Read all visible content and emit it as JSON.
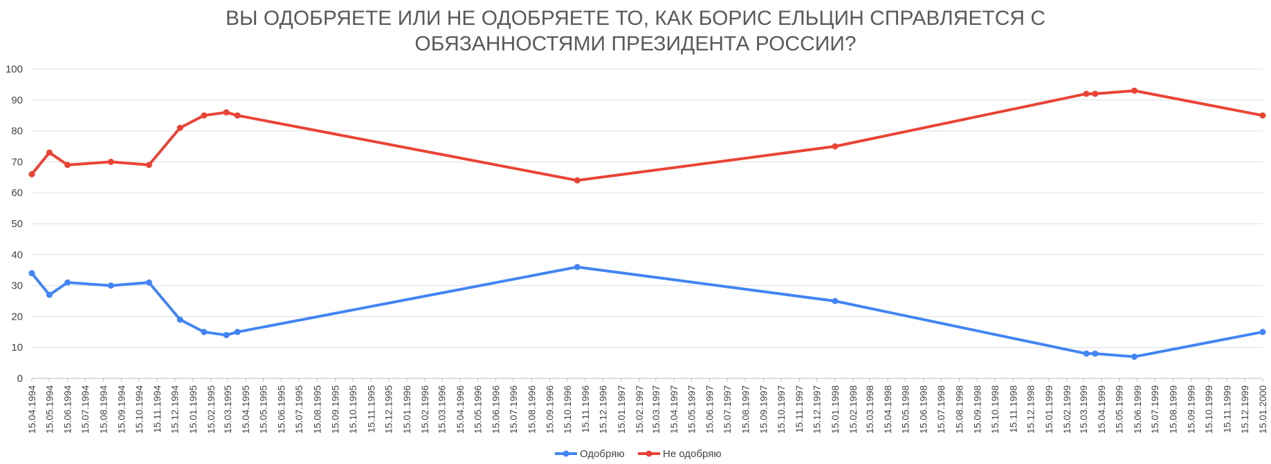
{
  "chart_data": {
    "type": "line",
    "title_lines": [
      "ВЫ ОДОБРЯЕТЕ ИЛИ НЕ ОДОБРЯЕТЕ ТО, КАК БОРИС ЕЛЬЦИН СПРАВЛЯЕТСЯ С",
      "ОБЯЗАННОСТЯМИ ПРЕЗИДЕНТА РОССИИ?"
    ],
    "xlabel": "",
    "ylabel": "",
    "ylim": [
      0,
      100
    ],
    "yticks": [
      0,
      10,
      20,
      30,
      40,
      50,
      60,
      70,
      80,
      90,
      100
    ],
    "xlim": [
      "1994-04-15",
      "2000-01-15"
    ],
    "x_tick_labels": [
      "15.04.1994",
      "15.05.1994",
      "15.06.1994",
      "15.07.1994",
      "15.08.1994",
      "15.09.1994",
      "15.10.1994",
      "15.11.1994",
      "15.12.1994",
      "15.01.1995",
      "15.02.1995",
      "15.03.1995",
      "15.04.1995",
      "15.05.1995",
      "15.06.1995",
      "15.07.1995",
      "15.08.1995",
      "15.09.1995",
      "15.10.1995",
      "15.11.1995",
      "15.12.1995",
      "15.01.1996",
      "15.02.1996",
      "15.03.1996",
      "15.04.1996",
      "15.05.1996",
      "15.06.1996",
      "15.07.1996",
      "15.08.1996",
      "15.09.1996",
      "15.10.1996",
      "15.11.1996",
      "15.12.1996",
      "15.01.1997",
      "15.02.1997",
      "15.03.1997",
      "15.04.1997",
      "15.05.1997",
      "15.06.1997",
      "15.07.1997",
      "15.08.1997",
      "15.09.1997",
      "15.10.1997",
      "15.11.1997",
      "15.12.1997",
      "15.01.1998",
      "15.02.1998",
      "15.03.1998",
      "15.04.1998",
      "15.05.1998",
      "15.06.1998",
      "15.07.1998",
      "15.08.1998",
      "15.09.1998",
      "15.10.1998",
      "15.11.1998",
      "15.12.1998",
      "15.01.1999",
      "15.02.1999",
      "15.03.1999",
      "15.04.1999",
      "15.05.1999",
      "15.06.1999",
      "15.07.1999",
      "15.08.1999",
      "15.09.1999",
      "15.10.1999",
      "15.11.1999",
      "15.12.1999",
      "15.01.2000"
    ],
    "grid": true,
    "legend_position": "bottom",
    "series": [
      {
        "name": "Одобряю",
        "color": "#4285f4",
        "points": [
          {
            "x": "1994-04-15",
            "y": 34
          },
          {
            "x": "1994-05-15",
            "y": 27
          },
          {
            "x": "1994-06-15",
            "y": 31
          },
          {
            "x": "1994-08-28",
            "y": 30
          },
          {
            "x": "1994-11-01",
            "y": 31
          },
          {
            "x": "1994-12-24",
            "y": 19
          },
          {
            "x": "1995-02-03",
            "y": 15
          },
          {
            "x": "1995-03-13",
            "y": 14
          },
          {
            "x": "1995-04-01",
            "y": 15
          },
          {
            "x": "1996-11-01",
            "y": 36
          },
          {
            "x": "1998-01-15",
            "y": 25
          },
          {
            "x": "1999-03-20",
            "y": 8
          },
          {
            "x": "1999-04-04",
            "y": 8
          },
          {
            "x": "1999-06-10",
            "y": 7
          },
          {
            "x": "2000-01-15",
            "y": 15
          }
        ]
      },
      {
        "name": "Не одобряю",
        "color": "#ea4335",
        "points": [
          {
            "x": "1994-04-15",
            "y": 66
          },
          {
            "x": "1994-05-15",
            "y": 73
          },
          {
            "x": "1994-06-15",
            "y": 69
          },
          {
            "x": "1994-08-28",
            "y": 70
          },
          {
            "x": "1994-11-01",
            "y": 69
          },
          {
            "x": "1994-12-24",
            "y": 81
          },
          {
            "x": "1995-02-03",
            "y": 85
          },
          {
            "x": "1995-03-13",
            "y": 86
          },
          {
            "x": "1995-04-01",
            "y": 85
          },
          {
            "x": "1996-11-01",
            "y": 64
          },
          {
            "x": "1998-01-15",
            "y": 75
          },
          {
            "x": "1999-03-20",
            "y": 92
          },
          {
            "x": "1999-04-04",
            "y": 92
          },
          {
            "x": "1999-06-10",
            "y": 93
          },
          {
            "x": "2000-01-15",
            "y": 85
          }
        ]
      }
    ]
  }
}
